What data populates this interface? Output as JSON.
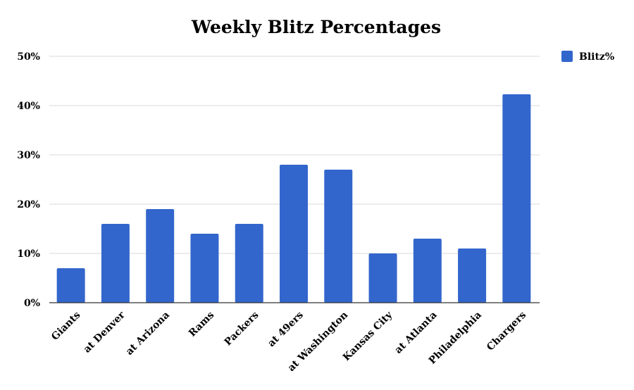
{
  "chart_data": {
    "type": "bar",
    "title": "Weekly Blitz Percentages",
    "xlabel": "",
    "ylabel": "",
    "categories": [
      "Giants",
      "at Denver",
      "at Arizona",
      "Rams",
      "Packers",
      "at 49ers",
      "at Washington",
      "Kansas City",
      "at Atlanta",
      "Philadelphia",
      "Chargers"
    ],
    "series": [
      {
        "name": "Blitz%",
        "color": "#3366cc",
        "values": [
          7,
          16,
          19,
          14,
          16,
          28,
          27,
          10,
          13,
          11,
          42.3
        ]
      }
    ],
    "ylim": [
      0,
      50
    ],
    "yticks": [
      "0%",
      "10%",
      "20%",
      "30%",
      "40%",
      "50%"
    ],
    "grid": true,
    "legend": "top-right"
  }
}
